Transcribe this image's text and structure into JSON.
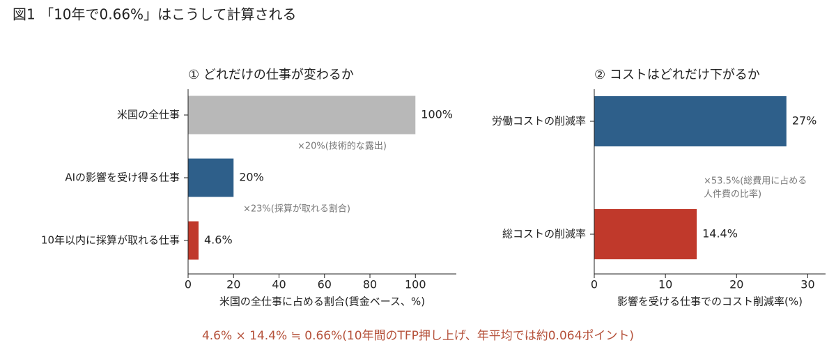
{
  "title": "図1 「10年で0.66%」はこうして計算される",
  "note": "4.6% × 14.4% ≒ 0.66%(10年間のTFP押し上げ、年平均では約0.064ポイント)",
  "chart_data": [
    {
      "type": "barh",
      "title": "① どれだけの仕事が変わるか",
      "categories": [
        "米国の全仕事",
        "AIの影響を受け得る仕事",
        "10年以内に採算が取れる仕事"
      ],
      "values": [
        100,
        20,
        4.6
      ],
      "value_labels": [
        "100%",
        "20%",
        "4.6%"
      ],
      "colors": [
        "#b8b8b8",
        "#2e5f8a",
        "#c0392b"
      ],
      "xlim": [
        0,
        118
      ],
      "xticks": [
        0,
        20,
        40,
        60,
        80,
        100
      ],
      "xlabel": "米国の全仕事に占める割合(賃金ベース、%)",
      "annotations": [
        [
          "×20%(技術的な露出)"
        ],
        [
          "×23%(採算が取れる割合)"
        ]
      ]
    },
    {
      "type": "barh",
      "title": "② コストはどれだけ下がるか",
      "categories": [
        "労働コストの削減率",
        "総コストの削減率"
      ],
      "values": [
        27,
        14.4
      ],
      "value_labels": [
        "27%",
        "14.4%"
      ],
      "colors": [
        "#2e5f8a",
        "#c0392b"
      ],
      "xlim": [
        0,
        32.5
      ],
      "xticks": [
        0,
        10,
        20,
        30
      ],
      "xlabel": "影響を受ける仕事でのコスト削減率(%)",
      "annotations": [
        [
          "×53.5%(総費用に占める",
          "人件費の比率)"
        ]
      ]
    }
  ]
}
